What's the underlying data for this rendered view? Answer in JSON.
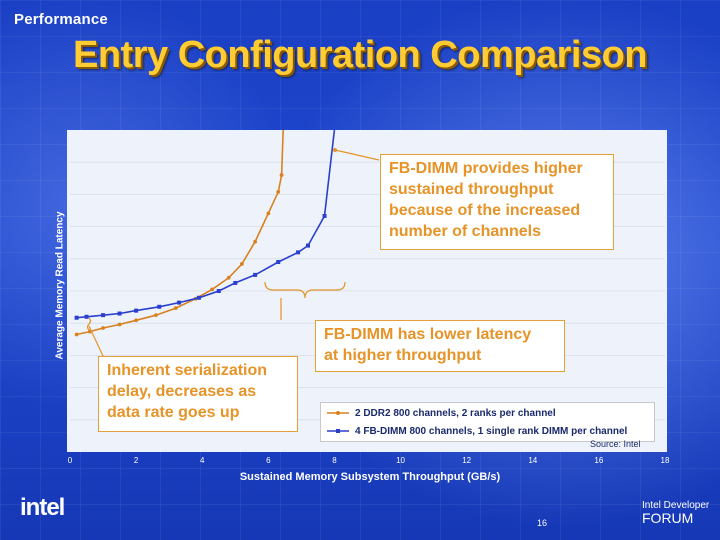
{
  "header": {
    "section": "Performance",
    "title": "Entry Configuration Comparison"
  },
  "callouts": {
    "fbdimm_throughput": [
      "FB-DIMM provides higher",
      "sustained throughput",
      "because of the increased",
      "number of channels"
    ],
    "fbdimm_latency": [
      "FB-DIMM has lower latency",
      "at higher throughput"
    ],
    "serialization": [
      "Inherent serialization",
      "delay, decreases as",
      "data rate goes up"
    ]
  },
  "legend": {
    "ddr2": "2 DDR2 800 channels, 2 ranks per channel",
    "fbdimm": "4 FB-DIMM 800 channels, 1 single rank DIMM per channel"
  },
  "source": "Source: Intel",
  "footer": {
    "page": "16",
    "logo_text": "intel",
    "idf_line1": "Intel Developer",
    "idf_line2": "FORUM"
  },
  "colors": {
    "ddr2": "#d9801f",
    "fbdimm": "#2a3fd0",
    "title": "#ffcc33",
    "callout_text": "#e69328"
  },
  "chart_data": {
    "type": "line",
    "xlabel": "Sustained Memory Subsystem Throughput (GB/s)",
    "ylabel": "Average Memory Read Latency",
    "xlim": [
      0,
      18
    ],
    "x_ticks": [
      "0",
      "2",
      "4",
      "6",
      "8",
      "10",
      "12",
      "14",
      "16",
      "18"
    ],
    "y_ticks_shown": false,
    "ylim": [
      0,
      100
    ],
    "grid": "horizontal",
    "legend_position": "bottom-right",
    "series": [
      {
        "name": "2 DDR2 800 channels, 2 ranks per channel",
        "color": "#d9801f",
        "points": [
          [
            0.2,
            36.5
          ],
          [
            0.6,
            37.4
          ],
          [
            1.0,
            38.5
          ],
          [
            1.5,
            39.6
          ],
          [
            2.0,
            40.9
          ],
          [
            2.6,
            42.5
          ],
          [
            3.2,
            44.7
          ],
          [
            3.8,
            47.6
          ],
          [
            4.3,
            50.5
          ],
          [
            4.8,
            54.1
          ],
          [
            5.2,
            58.4
          ],
          [
            5.6,
            65.3
          ],
          [
            6.0,
            74.1
          ],
          [
            6.3,
            80.8
          ],
          [
            6.4,
            86.0
          ],
          [
            6.45,
            100
          ]
        ]
      },
      {
        "name": "4 FB-DIMM 800 channels, 1 single rank DIMM per channel",
        "color": "#2a3fd0",
        "points": [
          [
            0.2,
            41.7
          ],
          [
            0.5,
            42.0
          ],
          [
            1.0,
            42.5
          ],
          [
            1.5,
            43.0
          ],
          [
            2.0,
            43.9
          ],
          [
            2.7,
            45.1
          ],
          [
            3.3,
            46.4
          ],
          [
            3.9,
            47.9
          ],
          [
            4.5,
            50.0
          ],
          [
            5.0,
            52.5
          ],
          [
            5.6,
            55.0
          ],
          [
            6.3,
            59.0
          ],
          [
            6.9,
            62.0
          ],
          [
            7.2,
            64.1
          ],
          [
            7.7,
            73.3
          ],
          [
            8.0,
            100
          ]
        ]
      }
    ]
  }
}
